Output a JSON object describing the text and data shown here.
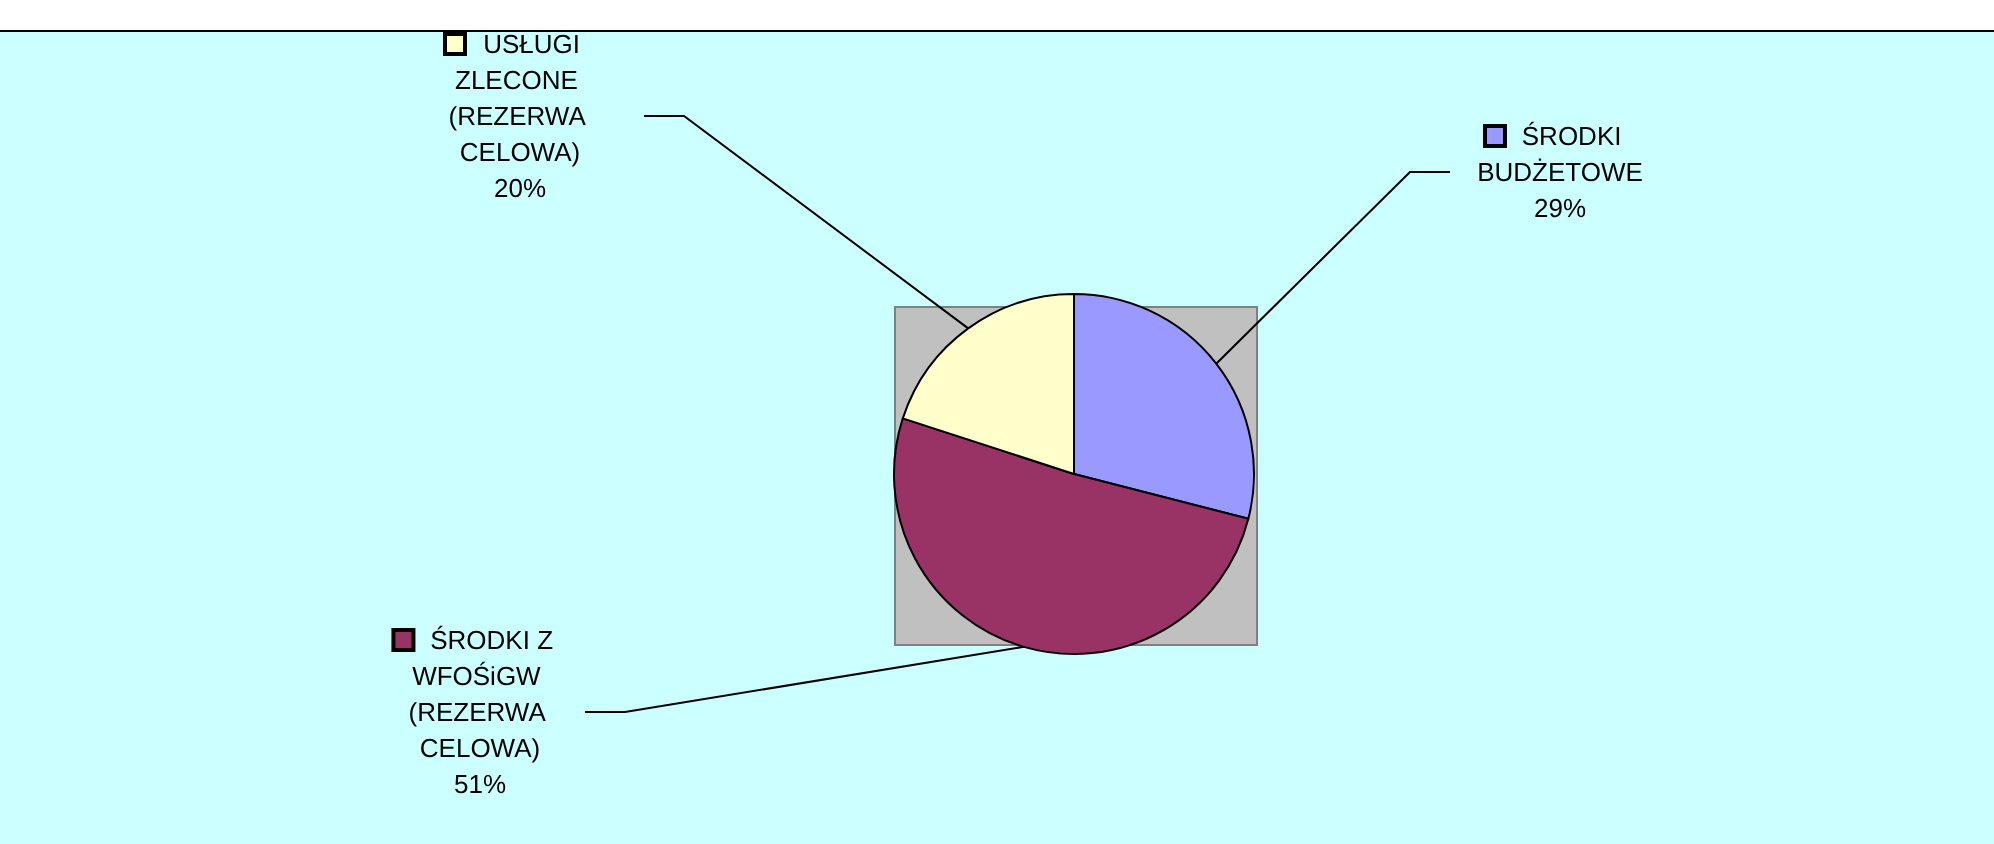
{
  "chart_data": {
    "type": "pie",
    "categories": [
      "ŚRODKI BUDŻETOWE",
      "ŚRODKI Z WFOŚiGW (REZERWA CELOWA)",
      "USŁUGI ZLECONE (REZERWA CELOWA)"
    ],
    "values": [
      29,
      51,
      20
    ],
    "colors": [
      "#9999ff",
      "#993366",
      "#ffffcc"
    ],
    "value_labels": [
      "29%",
      "51%",
      "20%"
    ],
    "legend": "left"
  }
}
